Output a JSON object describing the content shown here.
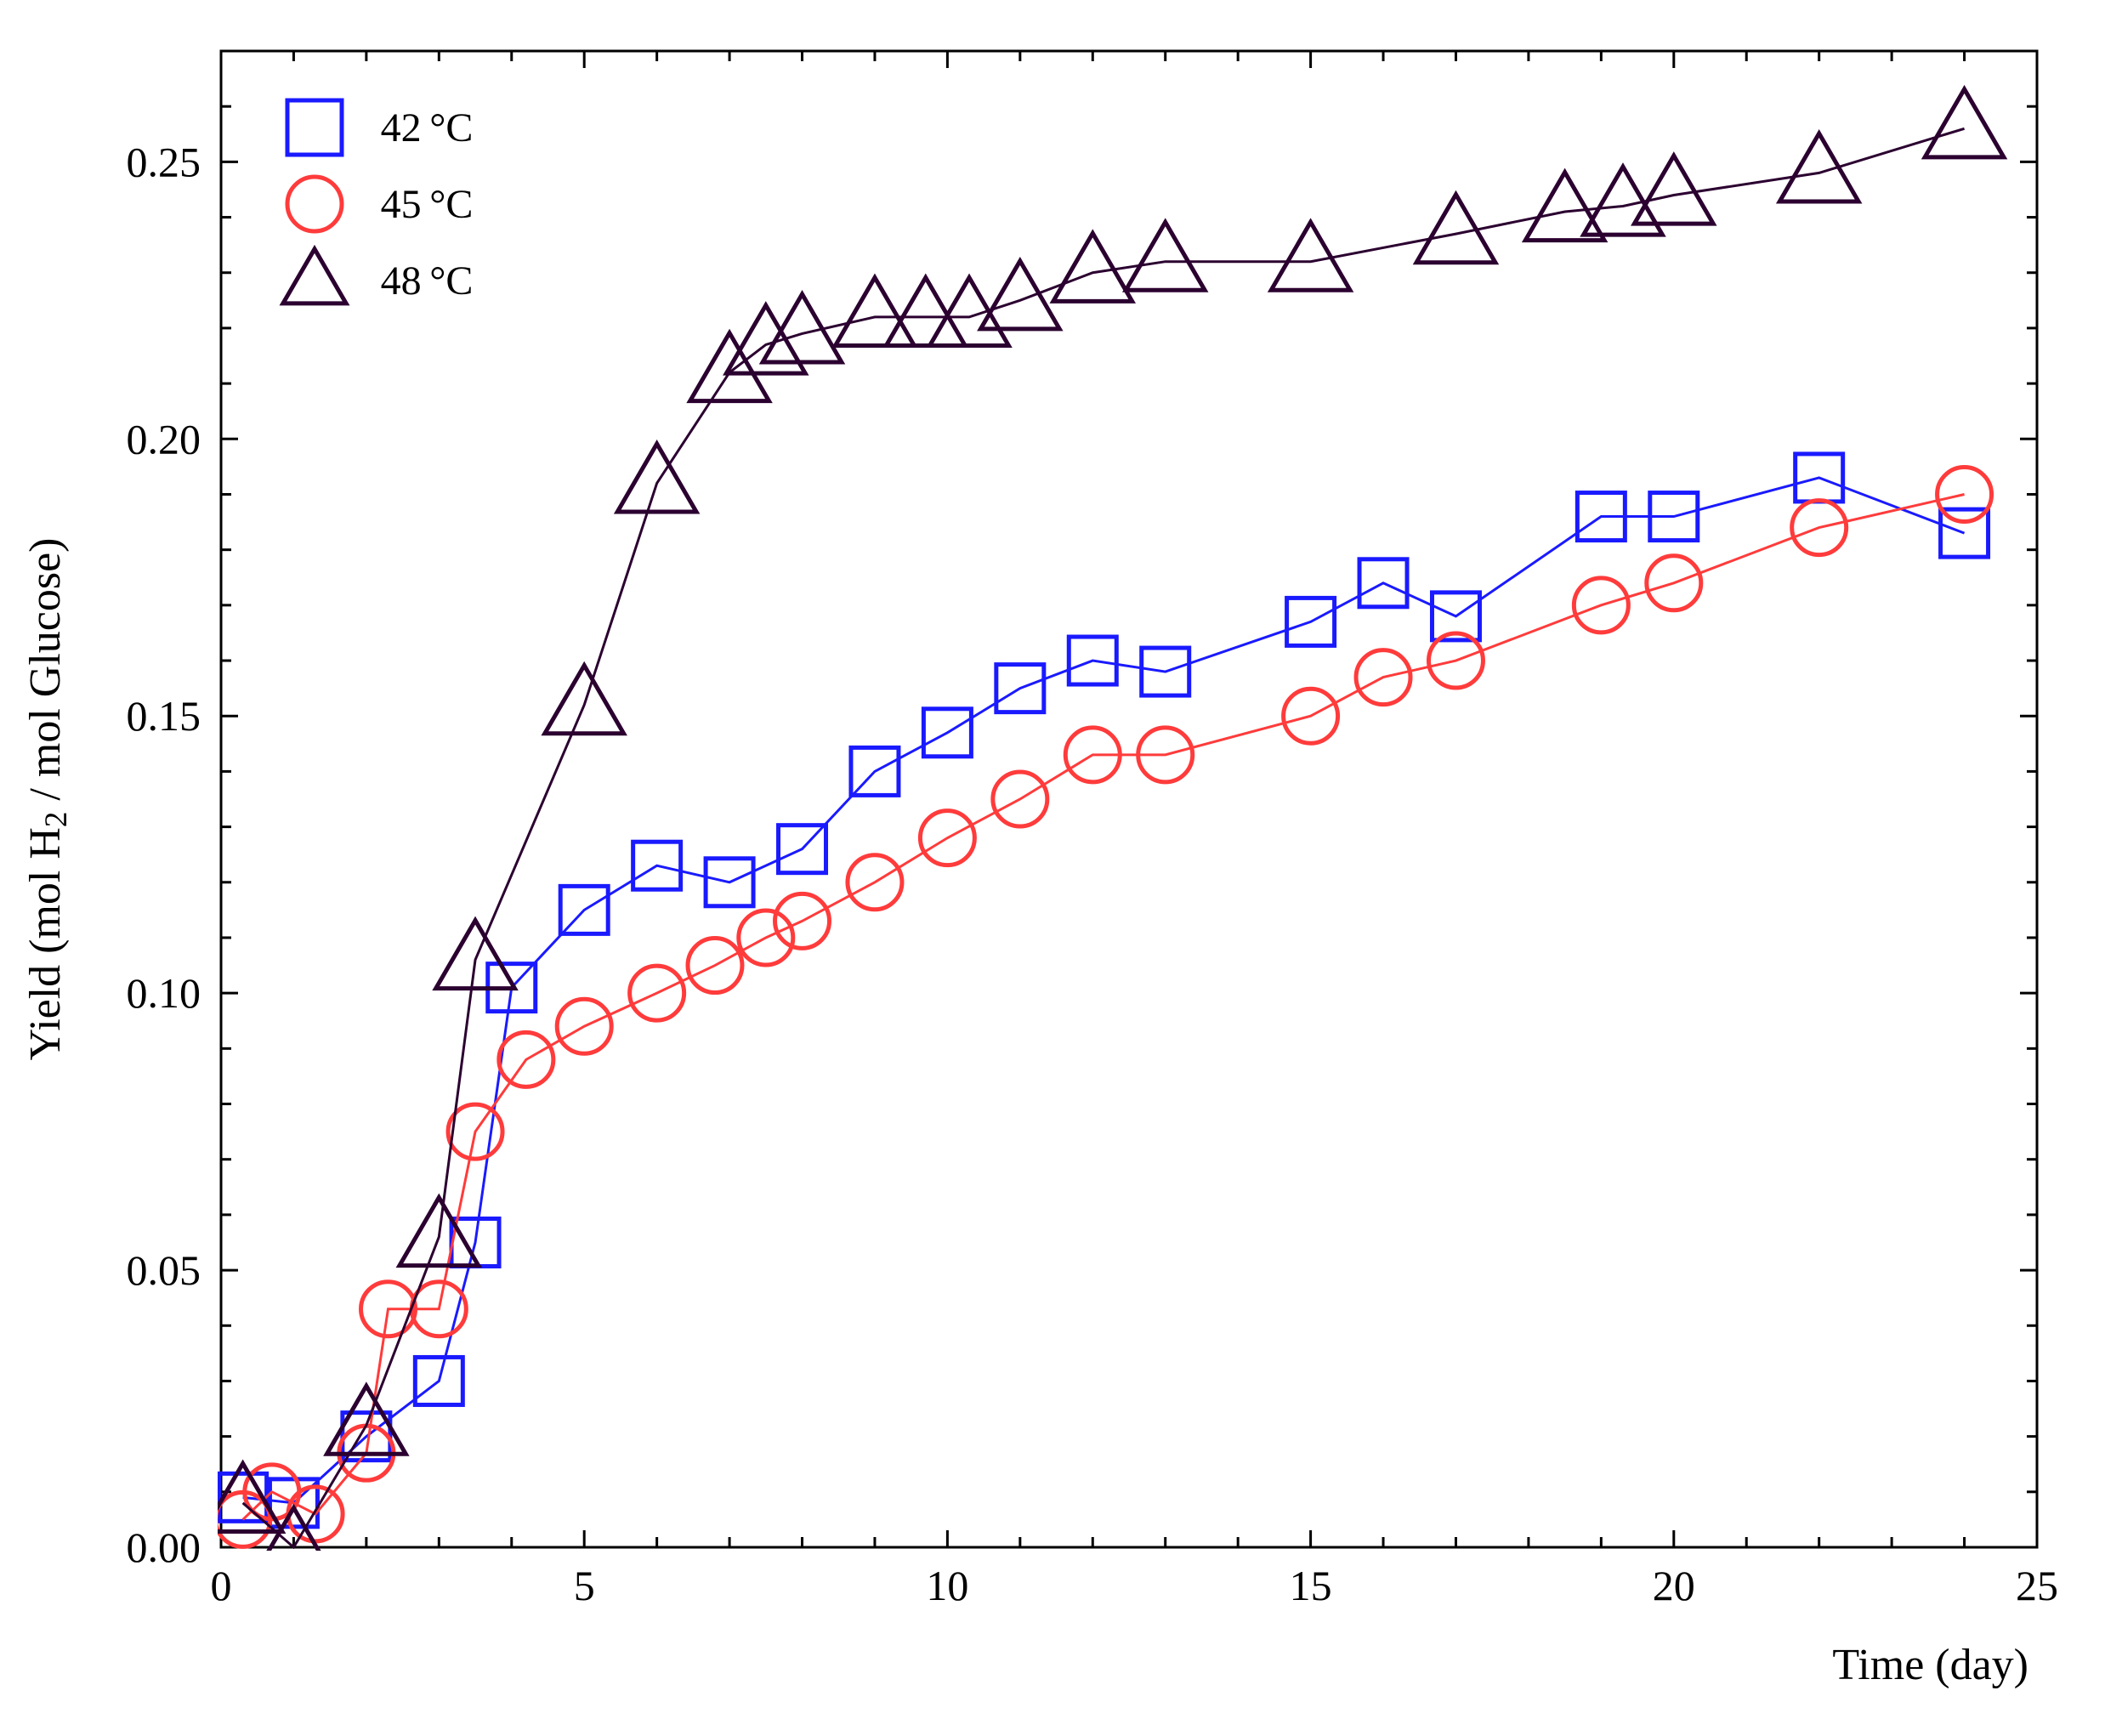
{
  "chart": {
    "type": "scatter-line",
    "background_color": "#ffffff",
    "axis_color": "#000000",
    "axis_line_width": 3,
    "tick_length": 20,
    "minor_tick_length": 12,
    "font_family_serif": "Georgia, 'Palatino Linotype', Palatino, serif",
    "x": {
      "label": "Time (day)",
      "min": 0,
      "max": 25,
      "major_step": 5,
      "minor_step": 1,
      "label_fontsize": 52,
      "tick_fontsize": 50
    },
    "y": {
      "label": "Yield (mol H₂ / mol Glucose)",
      "min": 0,
      "max": 0.27,
      "major_step": 0.05,
      "minor_step": 0.01,
      "label_fontsize": 52,
      "tick_fontsize": 50,
      "tick_labels": [
        "0.00",
        "0.05",
        "0.10",
        "0.15",
        "0.20",
        "0.25"
      ]
    },
    "legend": {
      "items": [
        {
          "label": "42 °C",
          "marker": "square",
          "color": "#1a1aff"
        },
        {
          "label": "45 °C",
          "marker": "circle",
          "color": "#ff3b3b"
        },
        {
          "label": "48 °C",
          "marker": "triangle",
          "color": "#2b0030"
        }
      ],
      "fontsize": 48,
      "box_color": "#000000",
      "box_line_width": 2,
      "marker_size": 64
    },
    "series": [
      {
        "name": "42C",
        "label": "42 °C",
        "marker": "square",
        "color": "#1a1aff",
        "line_width": 3,
        "marker_size": 56,
        "marker_stroke_width": 5,
        "data": [
          [
            0.3,
            0.009
          ],
          [
            1.0,
            0.008
          ],
          [
            2.0,
            0.02
          ],
          [
            3.0,
            0.03
          ],
          [
            3.5,
            0.055
          ],
          [
            4.0,
            0.101
          ],
          [
            5.0,
            0.115
          ],
          [
            6.0,
            0.123
          ],
          [
            7.0,
            0.12
          ],
          [
            8.0,
            0.126
          ],
          [
            9.0,
            0.14
          ],
          [
            10.0,
            0.147
          ],
          [
            11.0,
            0.155
          ],
          [
            12.0,
            0.16
          ],
          [
            13.0,
            0.158
          ],
          [
            15.0,
            0.167
          ],
          [
            16.0,
            0.174
          ],
          [
            17.0,
            0.168
          ],
          [
            19.0,
            0.186
          ],
          [
            20.0,
            0.186
          ],
          [
            22.0,
            0.193
          ],
          [
            24.0,
            0.183
          ]
        ]
      },
      {
        "name": "45C",
        "label": "45 °C",
        "marker": "circle",
        "color": "#ff3b3b",
        "line_width": 3,
        "marker_size": 64,
        "marker_stroke_width": 5,
        "data": [
          [
            0.3,
            0.005
          ],
          [
            0.7,
            0.01
          ],
          [
            1.3,
            0.006
          ],
          [
            2.0,
            0.017
          ],
          [
            2.3,
            0.043
          ],
          [
            3.0,
            0.043
          ],
          [
            3.5,
            0.075
          ],
          [
            4.2,
            0.088
          ],
          [
            5.0,
            0.094
          ],
          [
            6.0,
            0.1
          ],
          [
            6.8,
            0.105
          ],
          [
            7.5,
            0.11
          ],
          [
            8.0,
            0.113
          ],
          [
            9.0,
            0.12
          ],
          [
            10.0,
            0.128
          ],
          [
            11.0,
            0.135
          ],
          [
            12.0,
            0.143
          ],
          [
            13.0,
            0.143
          ],
          [
            15.0,
            0.15
          ],
          [
            16.0,
            0.157
          ],
          [
            17.0,
            0.16
          ],
          [
            19.0,
            0.17
          ],
          [
            20.0,
            0.174
          ],
          [
            22.0,
            0.184
          ],
          [
            24.0,
            0.19
          ]
        ]
      },
      {
        "name": "48C",
        "label": "48 °C",
        "marker": "triangle",
        "color": "#2b0030",
        "line_width": 3,
        "marker_size": 80,
        "marker_stroke_width": 5,
        "data": [
          [
            0.3,
            0.008
          ],
          [
            1.0,
            0.0
          ],
          [
            2.0,
            0.022
          ],
          [
            3.0,
            0.056
          ],
          [
            3.5,
            0.106
          ],
          [
            5.0,
            0.152
          ],
          [
            6.0,
            0.192
          ],
          [
            7.0,
            0.212
          ],
          [
            7.5,
            0.217
          ],
          [
            8.0,
            0.219
          ],
          [
            9.0,
            0.222
          ],
          [
            9.7,
            0.222
          ],
          [
            10.3,
            0.222
          ],
          [
            11.0,
            0.225
          ],
          [
            12.0,
            0.23
          ],
          [
            13.0,
            0.232
          ],
          [
            15.0,
            0.232
          ],
          [
            17.0,
            0.237
          ],
          [
            18.5,
            0.241
          ],
          [
            19.3,
            0.242
          ],
          [
            20.0,
            0.244
          ],
          [
            22.0,
            0.248
          ],
          [
            24.0,
            0.256
          ]
        ]
      }
    ]
  }
}
